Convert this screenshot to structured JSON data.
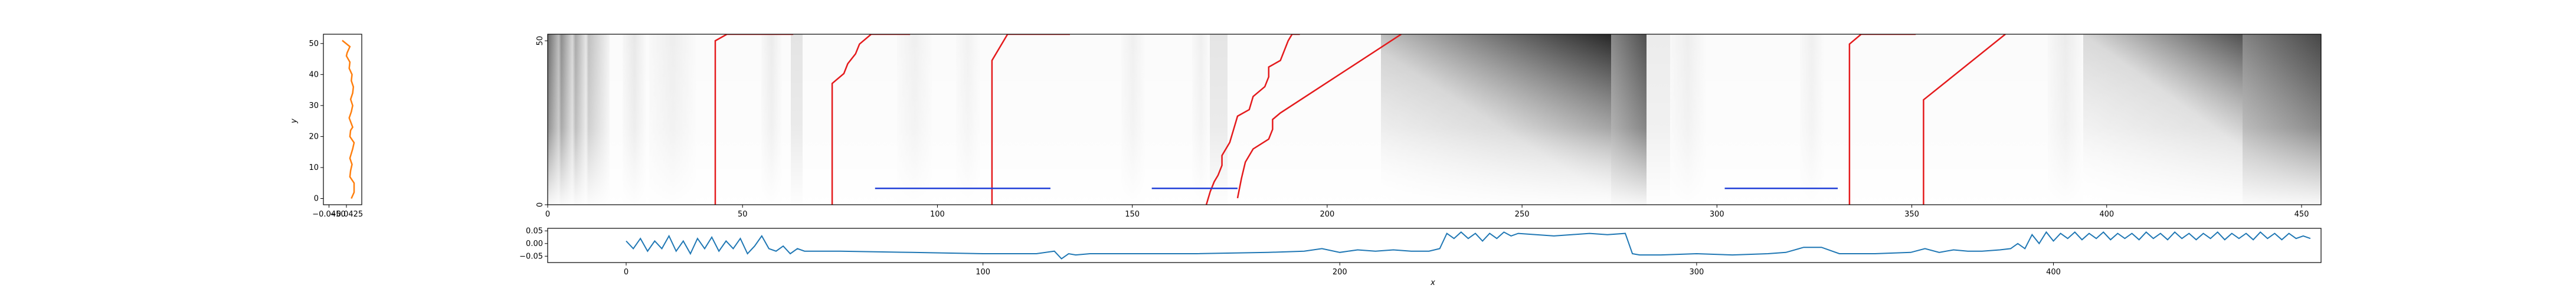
{
  "chart_data": [
    {
      "type": "line",
      "panel": "left-profile",
      "xlabel": "",
      "ylabel": "y",
      "xticks": [
        "−0.0450",
        "−0.0425"
      ],
      "xtick_values": [
        -0.045,
        -0.0425
      ],
      "yticks": [
        "0",
        "10",
        "20",
        "30",
        "40",
        "50"
      ],
      "xlim": [
        -0.0458,
        -0.0403
      ],
      "ylim": [
        -2,
        53
      ],
      "color": "#ff7f0e",
      "series": [
        {
          "x": [
            -0.0418,
            -0.0414,
            -0.0414,
            -0.042,
            -0.0419,
            -0.0417,
            -0.042,
            -0.0416,
            -0.0414,
            -0.042,
            -0.0419,
            -0.0416,
            -0.0421,
            -0.0418,
            -0.0416,
            -0.0419,
            -0.0416,
            -0.0415,
            -0.0418,
            -0.0417,
            -0.0421,
            -0.042,
            -0.0425,
            -0.0424,
            -0.042,
            -0.0431
          ],
          "y": [
            0,
            2,
            5,
            7,
            9,
            11,
            13,
            16,
            18,
            20,
            22,
            23,
            26,
            28,
            30,
            32,
            34,
            36,
            38,
            40,
            42,
            44,
            46,
            47,
            49,
            51
          ]
        }
      ]
    },
    {
      "type": "heatmap",
      "panel": "main-image",
      "colormap": "greys",
      "xticks": [
        "0",
        "50",
        "100",
        "150",
        "200",
        "250",
        "300",
        "350",
        "400",
        "450"
      ],
      "yticks": [
        "0",
        "50"
      ],
      "xlim": [
        0,
        455
      ],
      "ylim": [
        0,
        52
      ],
      "red_paths": [
        [
          [
            43,
            0
          ],
          [
            43,
            50
          ],
          [
            46,
            52
          ],
          [
            63,
            52
          ]
        ],
        [
          [
            73,
            0
          ],
          [
            73,
            37
          ],
          [
            76,
            40
          ],
          [
            77,
            43
          ],
          [
            79,
            46
          ],
          [
            80,
            49
          ],
          [
            83,
            52
          ],
          [
            93,
            52
          ]
        ],
        [
          [
            114,
            0
          ],
          [
            114,
            44
          ],
          [
            118,
            52
          ],
          [
            134,
            52
          ]
        ],
        [
          [
            169,
            0
          ],
          [
            170,
            4
          ],
          [
            171,
            7
          ],
          [
            172,
            9
          ],
          [
            173,
            12
          ],
          [
            173,
            15
          ],
          [
            175,
            19
          ],
          [
            176,
            23
          ],
          [
            177,
            27
          ],
          [
            180,
            29
          ],
          [
            181,
            33
          ],
          [
            184,
            36
          ],
          [
            185,
            39
          ],
          [
            185,
            42
          ],
          [
            188,
            44
          ],
          [
            189,
            47
          ],
          [
            190,
            50
          ],
          [
            191,
            52
          ],
          [
            193,
            52
          ]
        ],
        [
          [
            177,
            2
          ],
          [
            178,
            8
          ],
          [
            179,
            13
          ],
          [
            181,
            17
          ],
          [
            185,
            20
          ],
          [
            186,
            23
          ],
          [
            186,
            26
          ],
          [
            188,
            28
          ],
          [
            219,
            52
          ]
        ],
        [
          [
            334,
            0
          ],
          [
            334,
            49
          ],
          [
            337,
            52
          ],
          [
            351,
            52
          ]
        ],
        [
          [
            353,
            0
          ],
          [
            353,
            32
          ],
          [
            374,
            52
          ]
        ]
      ],
      "blue_segments": [
        [
          [
            84,
            5
          ],
          [
            129,
            5
          ]
        ],
        [
          [
            155,
            5
          ],
          [
            177,
            5
          ]
        ],
        [
          [
            302,
            5
          ],
          [
            331,
            5
          ]
        ]
      ]
    },
    {
      "type": "line",
      "panel": "bottom-profile",
      "xlabel": "x",
      "ylabel": "",
      "xticks": [
        "0",
        "100",
        "200",
        "300",
        "400"
      ],
      "yticks": [
        "0.05",
        "0.00",
        "−0.05"
      ],
      "ytick_values": [
        0.05,
        0.0,
        -0.05
      ],
      "xlim": [
        -22,
        475
      ],
      "ylim": [
        -0.075,
        0.06
      ],
      "color": "#1f77b4",
      "series": [
        {
          "x": [
            0,
            2,
            4,
            6,
            8,
            10,
            12,
            14,
            16,
            18,
            20,
            22,
            24,
            26,
            28,
            30,
            32,
            34,
            36,
            38,
            40,
            42,
            44,
            46,
            48,
            50,
            60,
            80,
            100,
            115,
            120,
            122,
            124,
            126,
            130,
            140,
            160,
            180,
            190,
            195,
            200,
            205,
            210,
            215,
            220,
            225,
            228,
            230,
            232,
            234,
            236,
            238,
            240,
            242,
            244,
            246,
            248,
            250,
            255,
            260,
            265,
            270,
            275,
            280,
            282,
            284,
            290,
            300,
            310,
            320,
            325,
            330,
            335,
            340,
            350,
            360,
            364,
            368,
            372,
            376,
            380,
            385,
            388,
            390,
            392,
            394,
            396,
            398,
            400,
            402,
            404,
            406,
            408,
            410,
            412,
            414,
            416,
            418,
            420,
            422,
            424,
            426,
            428,
            430,
            432,
            434,
            436,
            438,
            440,
            442,
            444,
            446,
            448,
            450,
            452,
            454,
            456,
            458,
            460,
            462,
            464,
            466,
            468,
            470,
            472
          ],
          "y": [
            0.01,
            -0.02,
            0.02,
            -0.03,
            0.01,
            -0.02,
            0.03,
            -0.03,
            0.01,
            -0.04,
            0.02,
            -0.02,
            0.025,
            -0.03,
            0.01,
            -0.02,
            0.02,
            -0.04,
            -0.01,
            0.03,
            -0.02,
            -0.03,
            -0.01,
            -0.04,
            -0.02,
            -0.03,
            -0.03,
            -0.035,
            -0.04,
            -0.04,
            -0.03,
            -0.06,
            -0.04,
            -0.045,
            -0.04,
            -0.04,
            -0.04,
            -0.035,
            -0.03,
            -0.02,
            -0.035,
            -0.025,
            -0.03,
            -0.025,
            -0.03,
            -0.03,
            -0.02,
            0.04,
            0.02,
            0.045,
            0.02,
            0.04,
            0.01,
            0.04,
            0.02,
            0.045,
            0.03,
            0.04,
            0.035,
            0.03,
            0.035,
            0.04,
            0.035,
            0.04,
            -0.04,
            -0.045,
            -0.045,
            -0.04,
            -0.045,
            -0.04,
            -0.035,
            -0.015,
            -0.015,
            -0.04,
            -0.04,
            -0.035,
            -0.02,
            -0.035,
            -0.025,
            -0.03,
            -0.03,
            -0.025,
            -0.02,
            0.0,
            -0.02,
            0.035,
            0.0,
            0.045,
            0.01,
            0.04,
            0.02,
            0.045,
            0.015,
            0.04,
            0.02,
            0.045,
            0.015,
            0.04,
            0.02,
            0.04,
            0.015,
            0.045,
            0.02,
            0.04,
            0.015,
            0.045,
            0.02,
            0.04,
            0.015,
            0.04,
            0.02,
            0.045,
            0.015,
            0.04,
            0.02,
            0.04,
            0.015,
            0.045,
            0.02,
            0.04,
            0.015,
            0.04,
            0.02,
            0.03,
            0.02
          ]
        }
      ]
    }
  ]
}
